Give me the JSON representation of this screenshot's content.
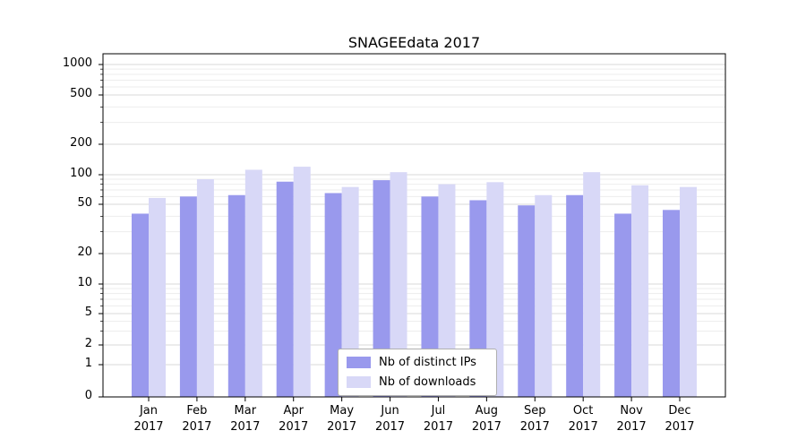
{
  "figure": {
    "title": "SNAGEEdata 2017"
  },
  "chart_data": {
    "type": "bar",
    "title": "SNAGEEdata 2017",
    "yscale": "symlog",
    "grid": true,
    "legend_position": "lower center",
    "ylim": [
      0,
      1300
    ],
    "yticks": [
      0,
      1,
      2,
      5,
      10,
      20,
      50,
      100,
      200,
      500,
      1000
    ],
    "categories": [
      "Jan",
      "Feb",
      "Mar",
      "Apr",
      "May",
      "Jun",
      "Jul",
      "Aug",
      "Sep",
      "Oct",
      "Nov",
      "Dec"
    ],
    "year_label": "2017",
    "series": [
      {
        "name": "Nb of distinct IPs",
        "color": "#9999ed",
        "values": [
          42,
          60,
          62,
          85,
          65,
          88,
          60,
          55,
          49,
          62,
          42,
          45
        ]
      },
      {
        "name": "Nb of downloads",
        "color": "#d8d8f7",
        "values": [
          58,
          90,
          112,
          120,
          75,
          106,
          80,
          84,
          62,
          106,
          78,
          75
        ]
      }
    ]
  }
}
